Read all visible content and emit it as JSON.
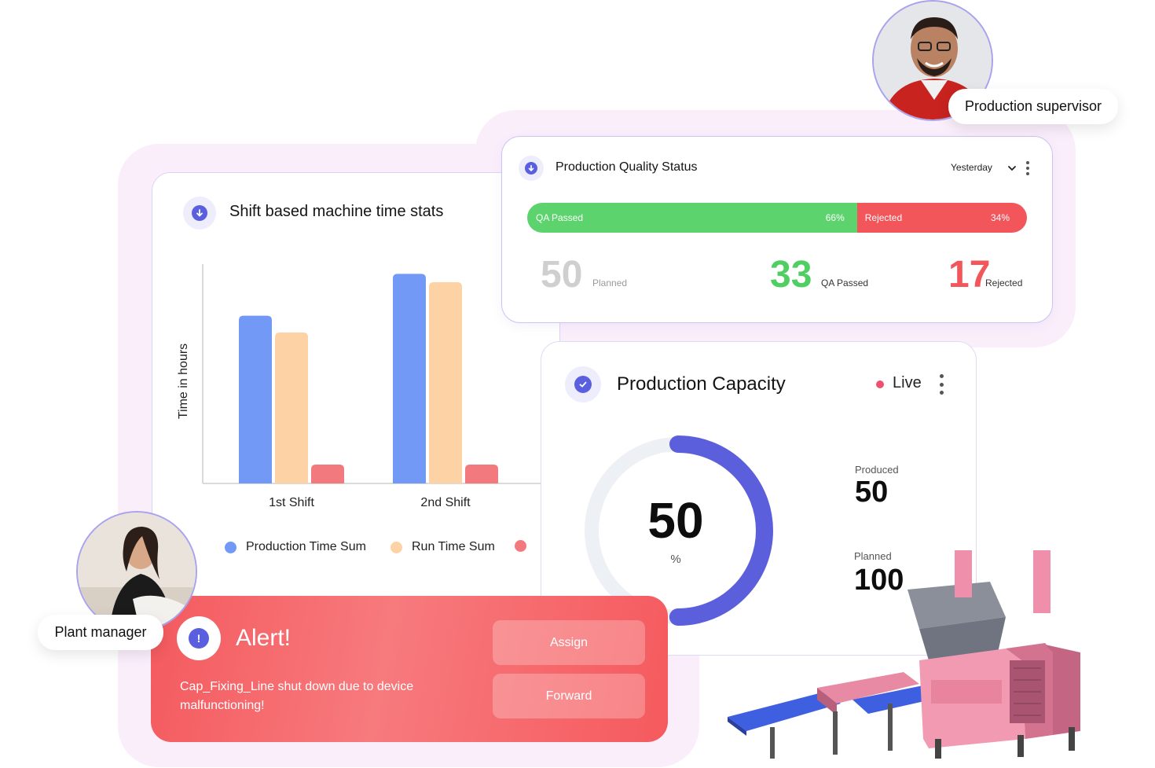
{
  "shift_card": {
    "title": "Shift based machine time stats",
    "icon": "download-icon"
  },
  "chart_data": {
    "type": "bar",
    "categories": [
      "1st Shift",
      "2nd Shift"
    ],
    "series": [
      {
        "name": "Production Time Sum",
        "color": "#7399f7",
        "values": [
          8,
          10
        ]
      },
      {
        "name": "Run Time Sum",
        "color": "#fdd3a6",
        "values": [
          7.2,
          9.6
        ]
      },
      {
        "name": "",
        "color": "#f27a7e",
        "values": [
          0.9,
          0.9
        ]
      }
    ],
    "xlabel": "",
    "ylabel": "Time in hours",
    "ylim": [
      0,
      10.5
    ],
    "grid": false,
    "legend": "bottom"
  },
  "quality": {
    "title": "Production Quality Status",
    "range": "Yesterday",
    "passed_label": "QA Passed",
    "passed_pct": 66,
    "passed_pct_text": "66%",
    "rejected_label": "Rejected",
    "rejected_pct_text": "34%",
    "planned_value": "50",
    "planned_label": "Planned",
    "qa_value": "33",
    "qa_label": "QA Passed",
    "rejected_value": "17",
    "rejected_small_label": "Rejected",
    "colors": {
      "passed": "#5dd36e",
      "rejected": "#f2555a",
      "planned": "#cfcfcf"
    }
  },
  "capacity": {
    "title": "Production Capacity",
    "status": "Live",
    "percent_value": "50",
    "percent_unit": "%",
    "percent_fraction": 0.5,
    "produced_label": "Produced",
    "produced_value": "50",
    "planned_label": "Planned",
    "planned_value": "100",
    "colors": {
      "arc": "#5b5fdc",
      "track": "#edf0f4",
      "live": "#f0506e"
    }
  },
  "alert": {
    "title": "Alert!",
    "message": "Cap_Fixing_Line shut down due to device malfunctioning!",
    "assign_label": "Assign",
    "forward_label": "Forward"
  },
  "people": {
    "supervisor_role": "Production supervisor",
    "manager_role": "Plant manager"
  }
}
